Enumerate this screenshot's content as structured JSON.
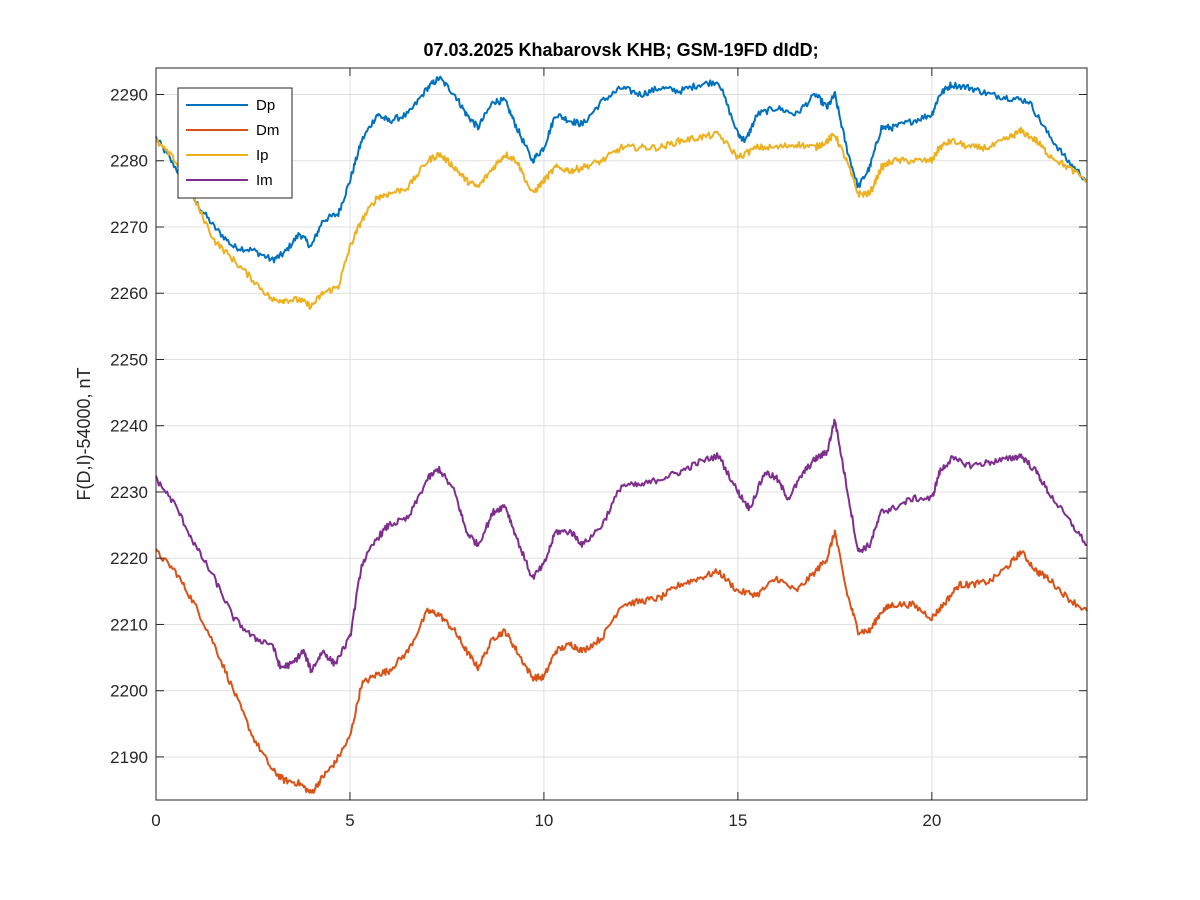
{
  "chart_data": {
    "type": "line",
    "title": "07.03.2025  Khabarovsk KHB; GSM-19FD dIdD;",
    "xlabel": "",
    "ylabel": "F(D,I)-54000, nT",
    "xlim": [
      0,
      24
    ],
    "ylim": [
      2183.5,
      2294
    ],
    "x_ticks": [
      0,
      5,
      10,
      15,
      20
    ],
    "y_ticks": [
      2190,
      2200,
      2210,
      2220,
      2230,
      2240,
      2250,
      2260,
      2270,
      2280,
      2290
    ],
    "grid": true,
    "legend_position": "top-left",
    "series": [
      {
        "name": "Dp",
        "color": "#0072BD",
        "points": [
          [
            0,
            2283.5
          ],
          [
            0.5,
            2279
          ],
          [
            1,
            2274
          ],
          [
            1.5,
            2270
          ],
          [
            2,
            2267
          ],
          [
            2.5,
            2266.5
          ],
          [
            3,
            2265
          ],
          [
            3.3,
            2266
          ],
          [
            3.7,
            2269
          ],
          [
            4,
            2267
          ],
          [
            4.3,
            2271
          ],
          [
            4.7,
            2272
          ],
          [
            5,
            2277
          ],
          [
            5.3,
            2283
          ],
          [
            5.7,
            2287
          ],
          [
            6,
            2286
          ],
          [
            6.5,
            2287
          ],
          [
            7,
            2291
          ],
          [
            7.3,
            2292.5
          ],
          [
            7.7,
            2290
          ],
          [
            8,
            2287
          ],
          [
            8.3,
            2285
          ],
          [
            8.7,
            2289
          ],
          [
            9,
            2289
          ],
          [
            9.3,
            2285
          ],
          [
            9.7,
            2280
          ],
          [
            10,
            2282
          ],
          [
            10.3,
            2287
          ],
          [
            10.7,
            2286
          ],
          [
            11,
            2285.5
          ],
          [
            11.5,
            2289
          ],
          [
            12,
            2291
          ],
          [
            12.5,
            2290
          ],
          [
            13,
            2291
          ],
          [
            13.5,
            2290.5
          ],
          [
            14,
            2291.5
          ],
          [
            14.5,
            2292
          ],
          [
            15,
            2284
          ],
          [
            15.2,
            2283
          ],
          [
            15.5,
            2287
          ],
          [
            16,
            2288
          ],
          [
            16.5,
            2287
          ],
          [
            17,
            2290
          ],
          [
            17.3,
            2288
          ],
          [
            17.5,
            2290
          ],
          [
            17.8,
            2282
          ],
          [
            18.1,
            2276
          ],
          [
            18.4,
            2279
          ],
          [
            18.7,
            2285
          ],
          [
            19,
            2285
          ],
          [
            19.5,
            2286
          ],
          [
            20,
            2287
          ],
          [
            20.2,
            2290
          ],
          [
            20.5,
            2291.5
          ],
          [
            21,
            2291
          ],
          [
            21.5,
            2290
          ],
          [
            22,
            2289.5
          ],
          [
            22.5,
            2289
          ],
          [
            23,
            2284
          ],
          [
            23.5,
            2280
          ],
          [
            24,
            2277
          ]
        ]
      },
      {
        "name": "Dm",
        "color": "#D95319",
        "points": [
          [
            0,
            2221
          ],
          [
            0.5,
            2218
          ],
          [
            1,
            2213
          ],
          [
            1.5,
            2207
          ],
          [
            2,
            2200
          ],
          [
            2.5,
            2193
          ],
          [
            3,
            2188
          ],
          [
            3.3,
            2186.5
          ],
          [
            3.7,
            2186
          ],
          [
            4,
            2184.5
          ],
          [
            4.3,
            2187
          ],
          [
            4.6,
            2189
          ],
          [
            5,
            2193
          ],
          [
            5.3,
            2201
          ],
          [
            5.7,
            2202.5
          ],
          [
            6,
            2203
          ],
          [
            6.5,
            2206
          ],
          [
            7,
            2212
          ],
          [
            7.3,
            2211.5
          ],
          [
            7.7,
            2209
          ],
          [
            8,
            2206
          ],
          [
            8.3,
            2203.5
          ],
          [
            8.7,
            2208
          ],
          [
            9,
            2209
          ],
          [
            9.3,
            2206
          ],
          [
            9.7,
            2202
          ],
          [
            10,
            2202
          ],
          [
            10.3,
            2206
          ],
          [
            10.7,
            2207
          ],
          [
            11,
            2206
          ],
          [
            11.5,
            2208
          ],
          [
            12,
            2213
          ],
          [
            12.5,
            2213.5
          ],
          [
            13,
            2214
          ],
          [
            13.5,
            2216
          ],
          [
            14,
            2217
          ],
          [
            14.5,
            2218
          ],
          [
            15,
            2215
          ],
          [
            15.5,
            2214.5
          ],
          [
            16,
            2217
          ],
          [
            16.5,
            2215
          ],
          [
            17,
            2218
          ],
          [
            17.3,
            2220
          ],
          [
            17.5,
            2224
          ],
          [
            17.8,
            2215
          ],
          [
            18.1,
            2209
          ],
          [
            18.4,
            2209
          ],
          [
            18.7,
            2212
          ],
          [
            19,
            2213
          ],
          [
            19.5,
            2213
          ],
          [
            20,
            2211
          ],
          [
            20.3,
            2213
          ],
          [
            20.7,
            2216
          ],
          [
            21,
            2216
          ],
          [
            21.5,
            2216.5
          ],
          [
            22,
            2219
          ],
          [
            22.3,
            2221
          ],
          [
            22.7,
            2218
          ],
          [
            23,
            2217
          ],
          [
            23.5,
            2214
          ],
          [
            24,
            2212
          ]
        ]
      },
      {
        "name": "Ip",
        "color": "#EDB120",
        "points": [
          [
            0,
            2283
          ],
          [
            0.5,
            2280
          ],
          [
            1,
            2274
          ],
          [
            1.5,
            2268
          ],
          [
            2,
            2265
          ],
          [
            2.5,
            2262
          ],
          [
            3,
            2259
          ],
          [
            3.3,
            2259
          ],
          [
            3.7,
            2259
          ],
          [
            4,
            2258
          ],
          [
            4.3,
            2260
          ],
          [
            4.7,
            2261
          ],
          [
            5,
            2267
          ],
          [
            5.3,
            2271
          ],
          [
            5.7,
            2274.5
          ],
          [
            6,
            2275
          ],
          [
            6.5,
            2276
          ],
          [
            7,
            2280
          ],
          [
            7.3,
            2281
          ],
          [
            7.7,
            2279
          ],
          [
            8,
            2277
          ],
          [
            8.3,
            2276
          ],
          [
            8.7,
            2279
          ],
          [
            9,
            2281
          ],
          [
            9.3,
            2280
          ],
          [
            9.7,
            2275
          ],
          [
            10,
            2277
          ],
          [
            10.3,
            2279
          ],
          [
            10.7,
            2278.5
          ],
          [
            11,
            2279
          ],
          [
            11.5,
            2280
          ],
          [
            12,
            2282
          ],
          [
            12.5,
            2282
          ],
          [
            13,
            2282
          ],
          [
            13.5,
            2283
          ],
          [
            14,
            2283.5
          ],
          [
            14.5,
            2284
          ],
          [
            15,
            2280.5
          ],
          [
            15.5,
            2282
          ],
          [
            16,
            2282
          ],
          [
            16.5,
            2282.5
          ],
          [
            17,
            2282
          ],
          [
            17.3,
            2283
          ],
          [
            17.5,
            2284
          ],
          [
            17.8,
            2280
          ],
          [
            18.1,
            2275
          ],
          [
            18.4,
            2275
          ],
          [
            18.7,
            2279
          ],
          [
            19,
            2280
          ],
          [
            19.5,
            2280
          ],
          [
            20,
            2280
          ],
          [
            20.2,
            2282
          ],
          [
            20.5,
            2283
          ],
          [
            21,
            2282
          ],
          [
            21.5,
            2282
          ],
          [
            22,
            2283.5
          ],
          [
            22.3,
            2284.5
          ],
          [
            22.7,
            2283
          ],
          [
            23,
            2281
          ],
          [
            23.5,
            2279
          ],
          [
            24,
            2277
          ]
        ]
      },
      {
        "name": "Im",
        "color": "#7E2F8E",
        "points": [
          [
            0,
            2232
          ],
          [
            0.5,
            2228
          ],
          [
            1,
            2222
          ],
          [
            1.5,
            2217
          ],
          [
            2,
            2211
          ],
          [
            2.5,
            2208
          ],
          [
            3,
            2207
          ],
          [
            3.2,
            2203.5
          ],
          [
            3.5,
            2204
          ],
          [
            3.8,
            2206
          ],
          [
            4,
            2203
          ],
          [
            4.3,
            2206
          ],
          [
            4.6,
            2204
          ],
          [
            5,
            2208
          ],
          [
            5.3,
            2219
          ],
          [
            5.7,
            2223
          ],
          [
            6,
            2225
          ],
          [
            6.5,
            2226
          ],
          [
            7,
            2232
          ],
          [
            7.3,
            2233.5
          ],
          [
            7.7,
            2230
          ],
          [
            8,
            2224
          ],
          [
            8.3,
            2222
          ],
          [
            8.7,
            2227
          ],
          [
            9,
            2228
          ],
          [
            9.3,
            2223
          ],
          [
            9.7,
            2217
          ],
          [
            10,
            2219
          ],
          [
            10.3,
            2224
          ],
          [
            10.7,
            2224
          ],
          [
            11,
            2222
          ],
          [
            11.5,
            2225
          ],
          [
            12,
            2231
          ],
          [
            12.5,
            2231
          ],
          [
            13,
            2232
          ],
          [
            13.5,
            2233
          ],
          [
            14,
            2234.5
          ],
          [
            14.5,
            2235.5
          ],
          [
            15,
            2230
          ],
          [
            15.3,
            2227.5
          ],
          [
            15.7,
            2233
          ],
          [
            16,
            2232
          ],
          [
            16.3,
            2229
          ],
          [
            16.7,
            2233
          ],
          [
            17,
            2235
          ],
          [
            17.3,
            2236
          ],
          [
            17.5,
            2241
          ],
          [
            17.8,
            2231
          ],
          [
            18.1,
            2221
          ],
          [
            18.4,
            2222
          ],
          [
            18.7,
            2227
          ],
          [
            19,
            2227.5
          ],
          [
            19.5,
            2229
          ],
          [
            20,
            2229
          ],
          [
            20.2,
            2233
          ],
          [
            20.5,
            2235
          ],
          [
            21,
            2234
          ],
          [
            21.5,
            2234.5
          ],
          [
            22,
            2235
          ],
          [
            22.3,
            2235.5
          ],
          [
            22.7,
            2233
          ],
          [
            23,
            2230
          ],
          [
            23.5,
            2226
          ],
          [
            24,
            2222
          ]
        ]
      }
    ]
  }
}
